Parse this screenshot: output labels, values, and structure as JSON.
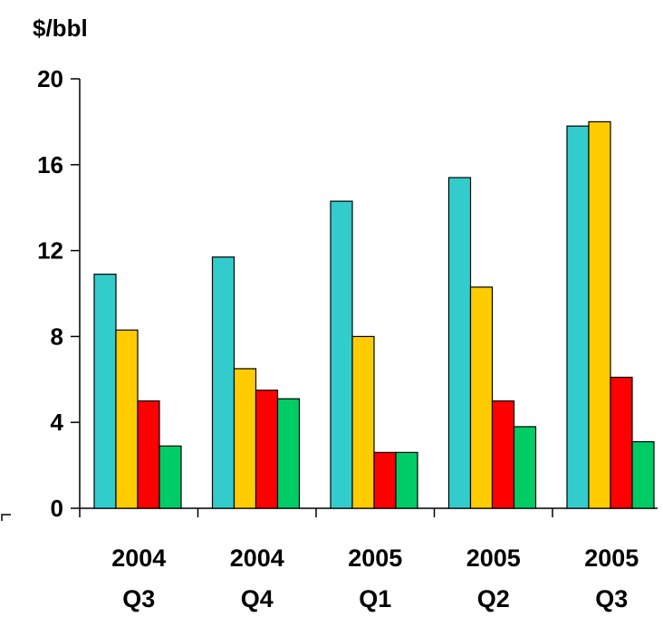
{
  "chart_data": {
    "type": "bar",
    "title": "",
    "ylabel": "$/bbl",
    "xlabel": "",
    "ylim": [
      0,
      20
    ],
    "yticks": [
      "0",
      "4",
      "8",
      "12",
      "16",
      "20"
    ],
    "categories": [
      [
        "2004",
        "Q3"
      ],
      [
        "2004",
        "Q4"
      ],
      [
        "2005",
        "Q1"
      ],
      [
        "2005",
        "Q2"
      ],
      [
        "2005",
        "Q3"
      ]
    ],
    "series": [
      {
        "color": "#33CCCC",
        "values": [
          10.9,
          11.7,
          14.3,
          15.4,
          17.8
        ]
      },
      {
        "color": "#FFCC00",
        "values": [
          8.3,
          6.5,
          8.0,
          10.3,
          18.0
        ]
      },
      {
        "color": "#FF0000",
        "values": [
          5.0,
          5.5,
          2.6,
          5.0,
          6.1
        ]
      },
      {
        "color": "#00CC66",
        "values": [
          2.9,
          5.1,
          2.6,
          3.8,
          3.1
        ]
      }
    ],
    "legend": "none",
    "grid": false
  }
}
